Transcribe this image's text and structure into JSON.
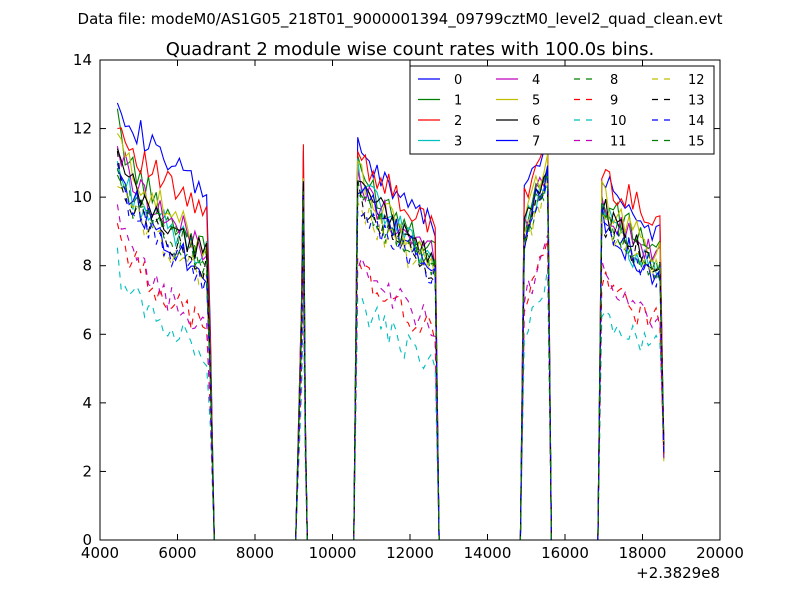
{
  "chart_data": {
    "type": "line",
    "suptitle": "Data file: modeM0/AS1G05_218T01_9000001394_09799cztM0_level2_quad_clean.evt",
    "title": "Quadrant 2 module wise count rates with 100.0s bins.",
    "xlabel": "",
    "ylabel": "",
    "xlim": [
      4000,
      20000
    ],
    "ylim": [
      0,
      14
    ],
    "x_offset_label": "+2.3829e8",
    "xticks": [
      4000,
      6000,
      8000,
      10000,
      12000,
      14000,
      16000,
      18000,
      20000
    ],
    "xtick_labels": [
      "4000",
      "6000",
      "8000",
      "10000",
      "12000",
      "14000",
      "16000",
      "18000",
      "20000"
    ],
    "yticks": [
      0,
      2,
      4,
      6,
      8,
      10,
      12,
      14
    ],
    "ytick_labels": [
      "0",
      "2",
      "4",
      "6",
      "8",
      "10",
      "12",
      "14"
    ],
    "grid": false,
    "legend_position": "top-right",
    "legend_columns": 4,
    "segments": [
      {
        "start": 4450,
        "end": 6950,
        "gap_end": 9050
      },
      {
        "start": 9050,
        "end": 9350,
        "gap_end": 10550
      },
      {
        "start": 10550,
        "end": 12750,
        "gap_end": 14850
      },
      {
        "start": 14850,
        "end": 15650,
        "gap_end": 16850
      },
      {
        "start": 16850,
        "end": 18550,
        "gap_end": 18550
      }
    ],
    "series": [
      {
        "name": "0",
        "color": "#0000ff",
        "dashed": false,
        "level": [
          13.2,
          10.1,
          11.5,
          9.3,
          10.8,
          9.0
        ]
      },
      {
        "name": "1",
        "color": "#008000",
        "dashed": false,
        "level": [
          12.2,
          8.4,
          11.0,
          8.6,
          10.0,
          8.5
        ]
      },
      {
        "name": "2",
        "color": "#ff0000",
        "dashed": false,
        "level": [
          12.4,
          9.5,
          11.6,
          9.0,
          10.7,
          9.4
        ]
      },
      {
        "name": "3",
        "color": "#00bfbf",
        "dashed": false,
        "level": [
          11.0,
          8.3,
          10.7,
          8.2,
          9.8,
          7.6
        ]
      },
      {
        "name": "4",
        "color": "#bf00bf",
        "dashed": false,
        "level": [
          11.6,
          8.5,
          10.6,
          8.3,
          9.9,
          8.2
        ]
      },
      {
        "name": "5",
        "color": "#bfbf00",
        "dashed": false,
        "level": [
          11.9,
          8.6,
          10.9,
          8.0,
          10.2,
          8.3
        ]
      },
      {
        "name": "6",
        "color": "#000000",
        "dashed": false,
        "level": [
          11.3,
          8.3,
          10.6,
          8.2,
          9.8,
          8.0
        ]
      },
      {
        "name": "7",
        "color": "#0000ff",
        "dashed": false,
        "level": [
          11.1,
          7.8,
          10.4,
          8.0,
          9.7,
          7.6
        ]
      },
      {
        "name": "8",
        "color": "#008000",
        "dashed": true,
        "level": [
          10.8,
          8.0,
          10.2,
          7.8,
          9.5,
          7.8
        ]
      },
      {
        "name": "9",
        "color": "#ff0000",
        "dashed": true,
        "level": [
          9.2,
          6.2,
          8.2,
          6.0,
          7.6,
          6.3
        ]
      },
      {
        "name": "10",
        "color": "#00bfbf",
        "dashed": true,
        "level": [
          8.1,
          5.5,
          7.1,
          5.1,
          6.6,
          5.5
        ]
      },
      {
        "name": "11",
        "color": "#bf00bf",
        "dashed": true,
        "level": [
          9.5,
          6.1,
          8.3,
          6.2,
          7.7,
          6.3
        ]
      },
      {
        "name": "12",
        "color": "#bfbf00",
        "dashed": true,
        "level": [
          10.6,
          7.7,
          10.0,
          7.7,
          9.4,
          7.9
        ]
      },
      {
        "name": "13",
        "color": "#000000",
        "dashed": true,
        "level": [
          10.9,
          7.9,
          10.1,
          7.9,
          9.4,
          7.9
        ]
      },
      {
        "name": "14",
        "color": "#0000ff",
        "dashed": true,
        "level": [
          10.7,
          7.6,
          10.0,
          7.7,
          9.3,
          7.7
        ]
      },
      {
        "name": "15",
        "color": "#008000",
        "dashed": true,
        "level": [
          10.9,
          8.2,
          10.3,
          7.9,
          9.6,
          8.0
        ]
      }
    ]
  }
}
